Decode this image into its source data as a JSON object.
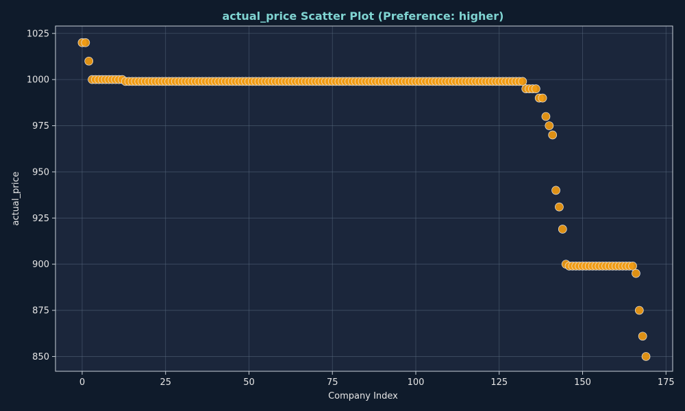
{
  "colors": {
    "figure_bg": "#0f1b2b",
    "plot_bg": "#1b263b",
    "title": "#7fd3d1",
    "text": "#e6e6e6",
    "grid": "#5a6a80",
    "spine": "#c9d1d9",
    "marker_fill": "#f39c12",
    "marker_edge": "#e8e8e8"
  },
  "chart_data": {
    "type": "scatter",
    "title": "actual_price Scatter Plot (Preference: higher)",
    "xlabel": "Company Index",
    "ylabel": "actual_price",
    "xlim": [
      -8,
      177
    ],
    "ylim": [
      842,
      1029
    ],
    "xticks": [
      0,
      25,
      50,
      75,
      100,
      125,
      150,
      175
    ],
    "yticks": [
      850,
      875,
      900,
      925,
      950,
      975,
      1000,
      1025
    ],
    "grid": true,
    "series": [
      {
        "x": [
          0,
          1,
          2,
          3,
          4,
          5,
          6,
          7,
          8,
          9,
          10,
          11,
          12,
          13,
          14,
          15,
          16,
          17,
          18,
          19,
          20,
          21,
          22,
          23,
          24,
          25,
          26,
          27,
          28,
          29,
          30,
          31,
          32,
          33,
          34,
          35,
          36,
          37,
          38,
          39,
          40,
          41,
          42,
          43,
          44,
          45,
          46,
          47,
          48,
          49,
          50,
          51,
          52,
          53,
          54,
          55,
          56,
          57,
          58,
          59,
          60,
          61,
          62,
          63,
          64,
          65,
          66,
          67,
          68,
          69,
          70,
          71,
          72,
          73,
          74,
          75,
          76,
          77,
          78,
          79,
          80,
          81,
          82,
          83,
          84,
          85,
          86,
          87,
          88,
          89,
          90,
          91,
          92,
          93,
          94,
          95,
          96,
          97,
          98,
          99,
          100,
          101,
          102,
          103,
          104,
          105,
          106,
          107,
          108,
          109,
          110,
          111,
          112,
          113,
          114,
          115,
          116,
          117,
          118,
          119,
          120,
          121,
          122,
          123,
          124,
          125,
          126,
          127,
          128,
          129,
          130,
          131,
          132,
          133,
          134,
          135,
          136,
          137,
          138,
          139,
          140,
          141,
          142,
          143,
          144,
          145,
          146,
          147,
          148,
          149,
          150,
          151,
          152,
          153,
          154,
          155,
          156,
          157,
          158,
          159,
          160,
          161,
          162,
          163,
          164,
          165,
          166,
          167,
          168,
          169
        ],
        "y": [
          1020,
          1020,
          1010,
          1000,
          1000,
          1000,
          1000,
          1000,
          1000,
          1000,
          1000,
          1000,
          1000,
          999,
          999,
          999,
          999,
          999,
          999,
          999,
          999,
          999,
          999,
          999,
          999,
          999,
          999,
          999,
          999,
          999,
          999,
          999,
          999,
          999,
          999,
          999,
          999,
          999,
          999,
          999,
          999,
          999,
          999,
          999,
          999,
          999,
          999,
          999,
          999,
          999,
          999,
          999,
          999,
          999,
          999,
          999,
          999,
          999,
          999,
          999,
          999,
          999,
          999,
          999,
          999,
          999,
          999,
          999,
          999,
          999,
          999,
          999,
          999,
          999,
          999,
          999,
          999,
          999,
          999,
          999,
          999,
          999,
          999,
          999,
          999,
          999,
          999,
          999,
          999,
          999,
          999,
          999,
          999,
          999,
          999,
          999,
          999,
          999,
          999,
          999,
          999,
          999,
          999,
          999,
          999,
          999,
          999,
          999,
          999,
          999,
          999,
          999,
          999,
          999,
          999,
          999,
          999,
          999,
          999,
          999,
          999,
          999,
          999,
          999,
          999,
          999,
          999,
          999,
          999,
          999,
          999,
          999,
          999,
          995,
          995,
          995,
          995,
          990,
          990,
          980,
          975,
          970,
          940,
          931,
          919,
          900,
          899,
          899,
          899,
          899,
          899,
          899,
          899,
          899,
          899,
          899,
          899,
          899,
          899,
          899,
          899,
          899,
          899,
          899,
          899,
          899,
          895,
          875,
          861,
          850
        ]
      }
    ]
  }
}
